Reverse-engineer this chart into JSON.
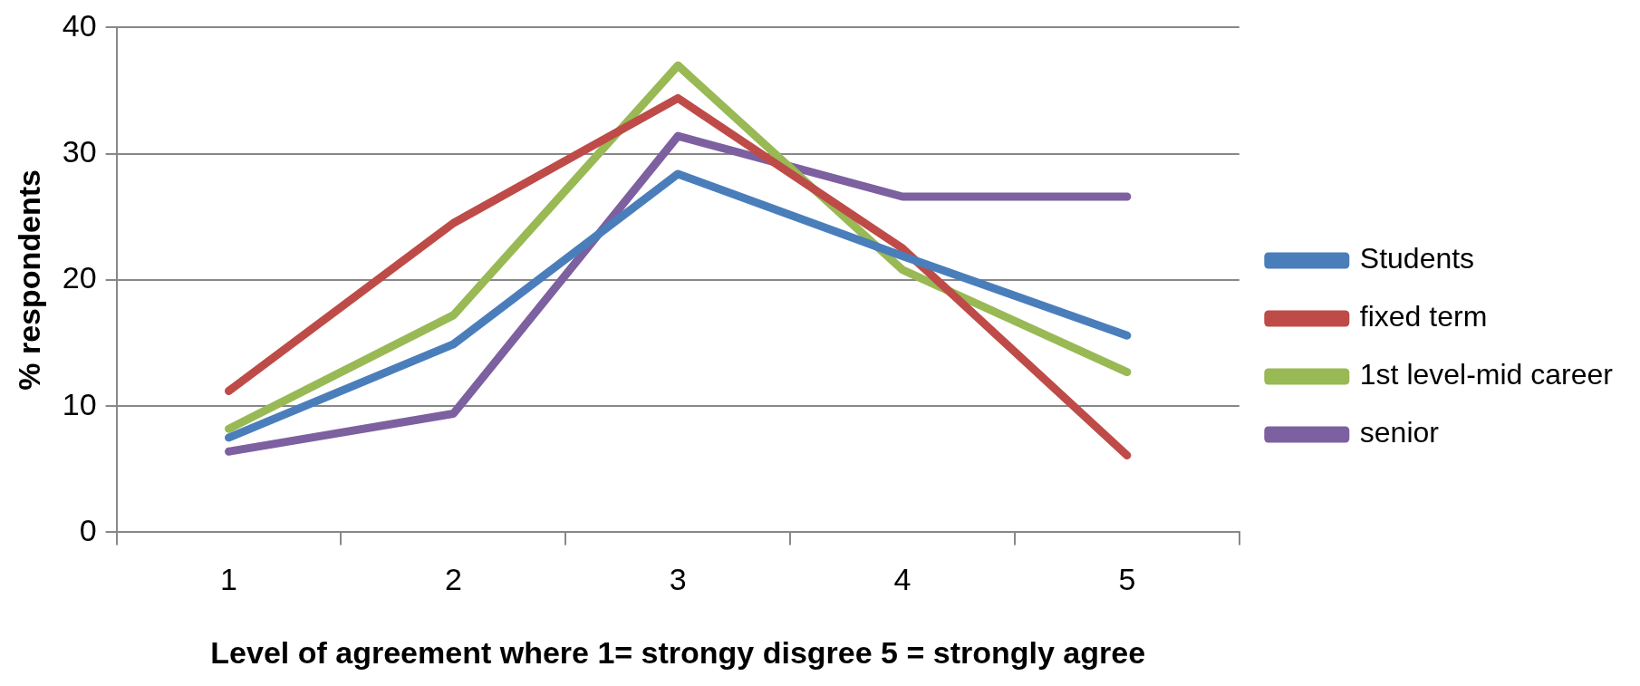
{
  "chart_data": {
    "type": "line",
    "xlabel": "Level of agreement where 1= strongy disgree 5 = strongly agree",
    "ylabel": "% respondents",
    "categories": [
      "1",
      "2",
      "3",
      "4",
      "5"
    ],
    "series": [
      {
        "name": "Students",
        "color": "#4a7ebb",
        "values": [
          7.5,
          14.9,
          28.4,
          21.9,
          15.6
        ]
      },
      {
        "name": "fixed term",
        "color": "#be4b48",
        "values": [
          11.2,
          24.5,
          34.4,
          22.5,
          6.1
        ]
      },
      {
        "name": "1st level-mid career",
        "color": "#98b954",
        "values": [
          8.2,
          17.2,
          37.0,
          20.8,
          12.7
        ]
      },
      {
        "name": "senior",
        "color": "#7d60a0",
        "values": [
          6.4,
          9.4,
          31.4,
          26.6,
          26.6
        ]
      }
    ],
    "ylim": [
      0,
      40
    ],
    "yticks": [
      0,
      10,
      20,
      30,
      40
    ],
    "grid": "y",
    "legend": "right",
    "marker": "none",
    "line_style": "solid"
  }
}
